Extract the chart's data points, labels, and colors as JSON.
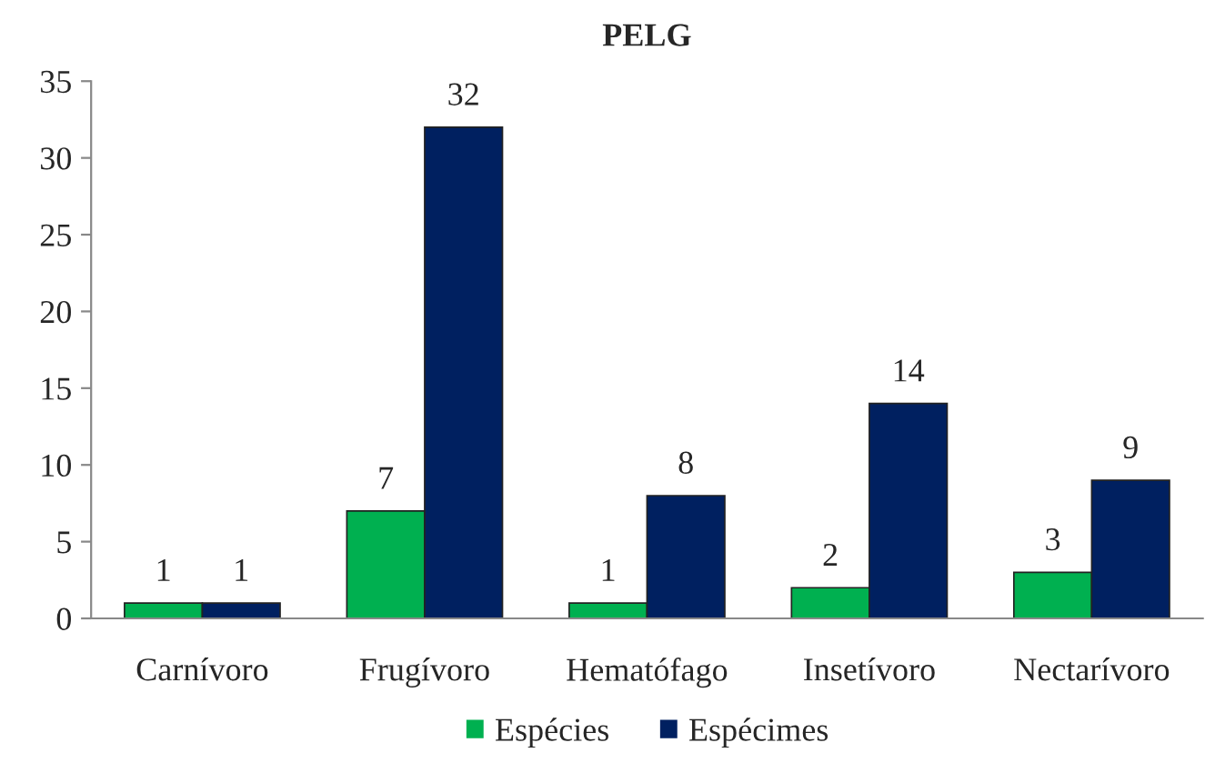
{
  "chart_data": {
    "type": "bar",
    "title": "PELG",
    "categories": [
      "Carnívoro",
      "Frugívoro",
      "Hematófago",
      "Insetívoro",
      "Nectarívoro"
    ],
    "series": [
      {
        "name": "Espécies",
        "color": "#00b050",
        "values": [
          1,
          7,
          1,
          2,
          3
        ]
      },
      {
        "name": "Espécimes",
        "color": "#002060",
        "values": [
          1,
          32,
          8,
          14,
          9
        ]
      }
    ],
    "ylim": [
      0,
      35
    ],
    "yticks": [
      0,
      5,
      10,
      15,
      20,
      25,
      30,
      35
    ],
    "data_labels": true,
    "grid": false,
    "legend": "bottom"
  }
}
